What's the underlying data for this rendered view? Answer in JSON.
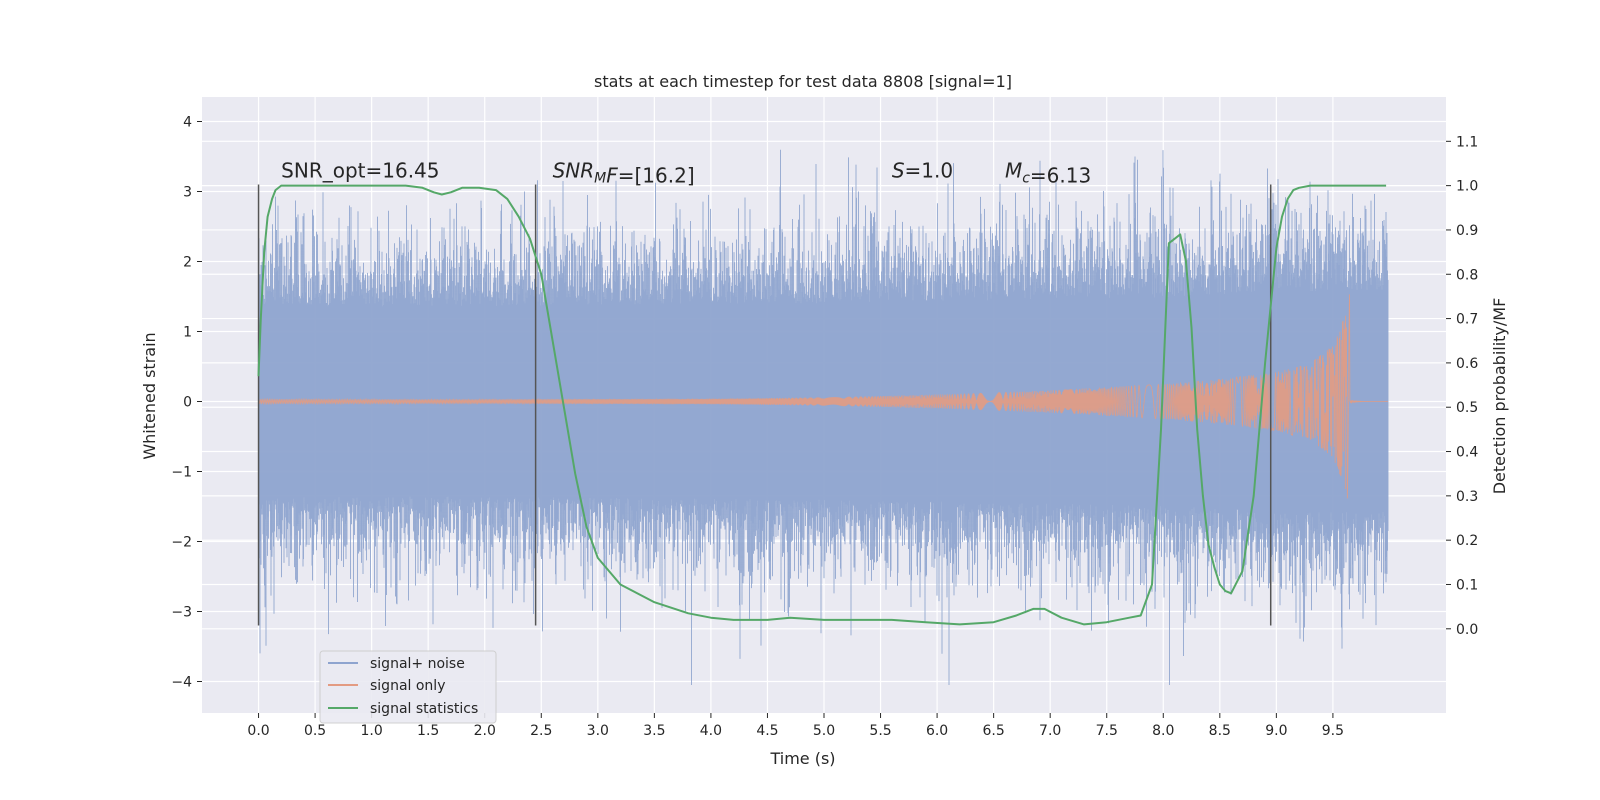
{
  "chart_data": {
    "type": "line",
    "title": "stats at each timestep for test data 8808 [signal=1]",
    "xlabel": "Time (s)",
    "ylabel": "Whitened strain",
    "y2label": "Detection probability/MF",
    "xlim": [
      -0.5,
      10.5
    ],
    "ylim": [
      -4.45,
      4.35
    ],
    "y2lim": [
      -0.19,
      1.2
    ],
    "xticks": [
      0.0,
      0.5,
      1.0,
      1.5,
      2.0,
      2.5,
      3.0,
      3.5,
      4.0,
      4.5,
      5.0,
      5.5,
      6.0,
      6.5,
      7.0,
      7.5,
      8.0,
      8.5,
      9.0,
      9.5
    ],
    "xtick_labels": [
      "0.0",
      "0.5",
      "1.0",
      "1.5",
      "2.0",
      "2.5",
      "3.0",
      "3.5",
      "4.0",
      "4.5",
      "5.0",
      "5.5",
      "6.0",
      "6.5",
      "7.0",
      "7.5",
      "8.0",
      "8.5",
      "9.0",
      "9.5"
    ],
    "yticks": [
      4,
      3,
      2,
      1,
      0,
      -1,
      -2,
      -3,
      -4
    ],
    "ytick_labels": [
      "4",
      "3",
      "2",
      "1",
      "0",
      "−1",
      "−2",
      "−3",
      "−4"
    ],
    "y2ticks": [
      1.1,
      1.0,
      0.9,
      0.8,
      0.7,
      0.6,
      0.5,
      0.4,
      0.3,
      0.2,
      0.1,
      0.0
    ],
    "y2tick_labels": [
      "1.1",
      "1.0",
      "0.9",
      "0.8",
      "0.7",
      "0.6",
      "0.5",
      "0.4",
      "0.3",
      "0.2",
      "0.1",
      "0.0"
    ],
    "grid": true,
    "legend_position": "lower-left",
    "series": [
      {
        "name": "signal+ noise",
        "color": "#8ea4cf",
        "style": "dense-noise",
        "x_range": [
          0.0,
          9.99
        ],
        "envelope": [
          [
            0.0,
            1.6
          ],
          [
            2.0,
            1.6
          ],
          [
            5.0,
            1.65
          ],
          [
            8.0,
            1.75
          ],
          [
            9.0,
            1.85
          ],
          [
            9.99,
            1.85
          ]
        ],
        "peaks_max": 3.95,
        "peaks_min": -4.05
      },
      {
        "name": "signal only",
        "color": "#e39b82",
        "style": "chirp",
        "x_range": [
          0.0,
          9.99
        ],
        "merger_time": 9.65,
        "amplitude": [
          [
            0.0,
            0.03
          ],
          [
            2.0,
            0.03
          ],
          [
            4.0,
            0.04
          ],
          [
            5.0,
            0.06
          ],
          [
            6.0,
            0.1
          ],
          [
            7.0,
            0.16
          ],
          [
            8.0,
            0.25
          ],
          [
            8.5,
            0.32
          ],
          [
            9.0,
            0.42
          ],
          [
            9.3,
            0.55
          ],
          [
            9.5,
            0.8
          ],
          [
            9.6,
            1.2
          ],
          [
            9.65,
            1.55
          ]
        ],
        "ringdown_amplitude": 0.02
      },
      {
        "name": "signal statistics",
        "color": "#55a868",
        "axis": "right",
        "x": [
          0.0,
          0.02,
          0.05,
          0.08,
          0.12,
          0.15,
          0.2,
          0.3,
          0.6,
          1.0,
          1.3,
          1.45,
          1.55,
          1.62,
          1.7,
          1.8,
          1.95,
          2.1,
          2.2,
          2.3,
          2.4,
          2.5,
          2.6,
          2.7,
          2.8,
          2.9,
          3.0,
          3.2,
          3.5,
          3.8,
          4.0,
          4.2,
          4.5,
          4.7,
          5.0,
          5.3,
          5.6,
          5.9,
          6.2,
          6.5,
          6.7,
          6.85,
          6.95,
          7.1,
          7.3,
          7.5,
          7.7,
          7.8,
          7.9,
          7.98,
          8.05,
          8.1,
          8.15,
          8.2,
          8.25,
          8.3,
          8.35,
          8.4,
          8.45,
          8.5,
          8.55,
          8.6,
          8.7,
          8.8,
          8.9,
          9.0,
          9.05,
          9.1,
          9.15,
          9.2,
          9.3,
          9.5,
          9.8,
          9.97
        ],
        "values": [
          0.57,
          0.7,
          0.85,
          0.93,
          0.97,
          0.99,
          1.0,
          1.0,
          1.0,
          1.0,
          1.0,
          0.995,
          0.985,
          0.98,
          0.985,
          0.995,
          0.995,
          0.99,
          0.97,
          0.93,
          0.88,
          0.8,
          0.65,
          0.5,
          0.35,
          0.23,
          0.16,
          0.1,
          0.06,
          0.035,
          0.025,
          0.02,
          0.02,
          0.025,
          0.02,
          0.02,
          0.02,
          0.015,
          0.01,
          0.015,
          0.03,
          0.045,
          0.045,
          0.025,
          0.01,
          0.015,
          0.025,
          0.03,
          0.1,
          0.45,
          0.87,
          0.88,
          0.89,
          0.83,
          0.68,
          0.45,
          0.3,
          0.19,
          0.14,
          0.1,
          0.085,
          0.08,
          0.13,
          0.3,
          0.6,
          0.86,
          0.93,
          0.97,
          0.99,
          0.995,
          1.0,
          1.0,
          1.0,
          1.0
        ]
      }
    ],
    "vertical_lines": [
      {
        "x": 0.0,
        "y0": -3.2,
        "y1": 3.1
      },
      {
        "x": 2.45,
        "y0": -3.2,
        "y1": 3.1
      },
      {
        "x": 8.95,
        "y0": -3.2,
        "y1": 3.1
      }
    ],
    "annotations": [
      {
        "x": 0.2,
        "y": 3.2,
        "parts": [
          {
            "text": "SNR_opt=16.45",
            "italic": false
          }
        ]
      },
      {
        "x": 2.6,
        "y": 3.2,
        "parts": [
          {
            "text": "SNR",
            "italic": true
          },
          {
            "text": "M",
            "italic": true,
            "sub": true
          },
          {
            "text": "F",
            "italic": true
          },
          {
            "text": "=[16.2]",
            "italic": false
          }
        ]
      },
      {
        "x": 5.6,
        "y": 3.2,
        "parts": [
          {
            "text": "S",
            "italic": true
          },
          {
            "text": "=1.0",
            "italic": false
          }
        ]
      },
      {
        "x": 6.6,
        "y": 3.2,
        "parts": [
          {
            "text": "M",
            "italic": true
          },
          {
            "text": "c",
            "italic": true,
            "sub": true
          },
          {
            "text": "=6.13",
            "italic": false
          }
        ]
      }
    ]
  }
}
